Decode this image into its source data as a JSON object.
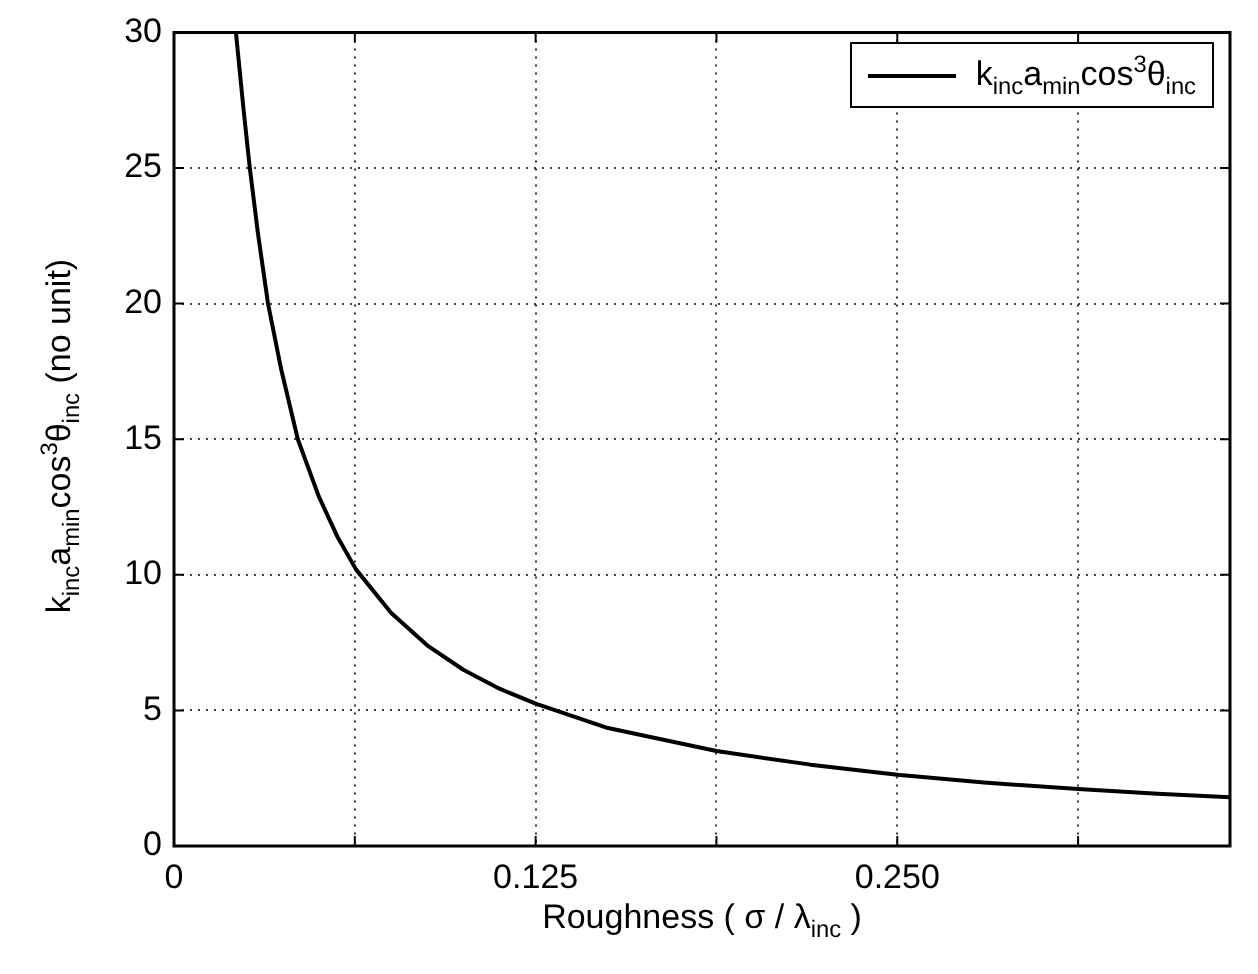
{
  "chart_data": {
    "type": "line",
    "xlabel": "Roughness ( σ / λ$_{inc}$ )",
    "ylabel": "k$_{inc}$a$_{min}$cos$^{3}$θ$_{inc}$ (no unit)",
    "x": [
      0.0214,
      0.024,
      0.0262,
      0.029,
      0.0325,
      0.037,
      0.0428,
      0.05,
      0.0565,
      0.0629,
      0.075,
      0.0875,
      0.1,
      0.1125,
      0.125,
      0.15,
      0.1875,
      0.22,
      0.25,
      0.28,
      0.3125,
      0.34,
      0.365
    ],
    "series": [
      {
        "name": "k$_{inc}$a$_{min}$cos$^{3}$θ$_{inc}$",
        "color": "#000000",
        "values": [
          30,
          27.2,
          25,
          22.6,
          20,
          17.6,
          15,
          12.9,
          11.4,
          10.2,
          8.6,
          7.4,
          6.5,
          5.8,
          5.25,
          4.35,
          3.5,
          3.0,
          2.63,
          2.34,
          2.1,
          1.93,
          1.8
        ]
      }
    ],
    "xlim": [
      0,
      0.365
    ],
    "xticks": [
      0,
      {
        "value": 0.0625,
        "label": null
      },
      {
        "value": 0.125,
        "label": "0.125"
      },
      {
        "value": 0.1875,
        "label": null
      },
      {
        "value": 0.25,
        "label": "0.250"
      },
      {
        "value": 0.3125,
        "label": null
      }
    ],
    "ylim": [
      0,
      30
    ],
    "yticks": [
      0,
      5,
      10,
      15,
      20,
      25,
      30
    ],
    "grid": true,
    "legend": "top right",
    "marker": "none",
    "line_style": "solid"
  }
}
